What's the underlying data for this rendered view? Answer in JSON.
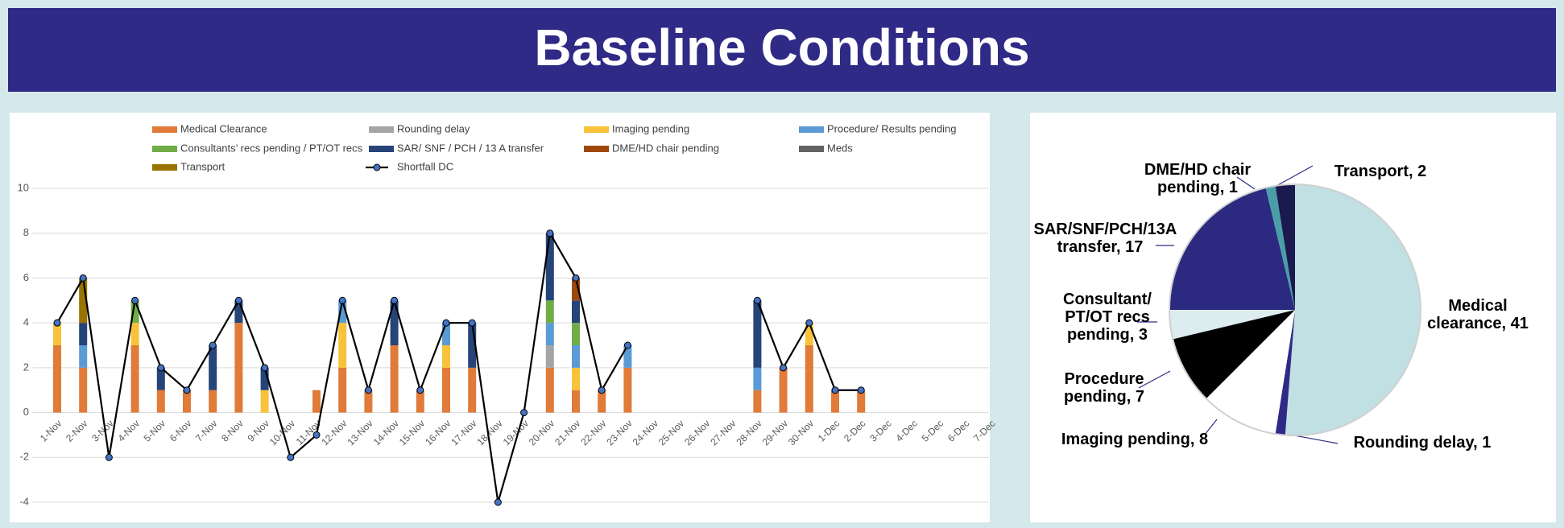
{
  "title": "Baseline Conditions",
  "chart_data": [
    {
      "type": "bar",
      "stacked": true,
      "grid": true,
      "categories": [
        "1-Nov",
        "2-Nov",
        "3-Nov",
        "4-Nov",
        "5-Nov",
        "6-Nov",
        "7-Nov",
        "8-Nov",
        "9-Nov",
        "10-Nov",
        "11-Nov",
        "12-Nov",
        "13-Nov",
        "14-Nov",
        "15-Nov",
        "16-Nov",
        "17-Nov",
        "18-Nov",
        "19-Nov",
        "20-Nov",
        "21-Nov",
        "22-Nov",
        "23-Nov",
        "24-Nov",
        "25-Nov",
        "26-Nov",
        "27-Nov",
        "28-Nov",
        "29-Nov",
        "30-Nov",
        "1-Dec",
        "2-Dec",
        "3-Dec",
        "4-Dec",
        "5-Dec",
        "6-Dec",
        "7-Dec"
      ],
      "ylim": [
        -4,
        10
      ],
      "yticks": [
        -4,
        -2,
        0,
        2,
        4,
        6,
        8,
        10
      ],
      "series": [
        {
          "name": "Medical Clearance",
          "color": "#e07b39",
          "values": [
            3,
            2,
            null,
            3,
            1,
            1,
            1,
            4,
            null,
            null,
            1,
            2,
            1,
            3,
            1,
            2,
            2,
            null,
            null,
            2,
            1,
            1,
            2,
            null,
            null,
            null,
            null,
            1,
            2,
            3,
            1,
            1,
            null,
            null,
            null,
            null,
            null
          ]
        },
        {
          "name": "Rounding delay",
          "color": "#a5a5a5",
          "values": [
            null,
            null,
            null,
            null,
            null,
            null,
            null,
            null,
            null,
            null,
            null,
            null,
            null,
            null,
            null,
            null,
            null,
            null,
            null,
            1,
            null,
            null,
            null,
            null,
            null,
            null,
            null,
            null,
            null,
            null,
            null,
            null,
            null,
            null,
            null,
            null,
            null
          ]
        },
        {
          "name": "Imaging pending",
          "color": "#f8c33a",
          "values": [
            1,
            null,
            null,
            1,
            null,
            null,
            null,
            null,
            1,
            null,
            null,
            2,
            null,
            null,
            null,
            1,
            null,
            null,
            null,
            null,
            1,
            null,
            null,
            null,
            null,
            null,
            null,
            null,
            null,
            1,
            null,
            null,
            null,
            null,
            null,
            null,
            null
          ]
        },
        {
          "name": "Procedure/ Results pending",
          "color": "#5b9bd5",
          "values": [
            null,
            1,
            null,
            null,
            null,
            null,
            null,
            null,
            null,
            null,
            null,
            1,
            null,
            null,
            null,
            1,
            null,
            null,
            null,
            1,
            1,
            null,
            1,
            null,
            null,
            null,
            null,
            1,
            null,
            null,
            null,
            null,
            null,
            null,
            null,
            null,
            null
          ]
        },
        {
          "name": "Consultants’ recs pending / PT/OT recs",
          "color": "#70ad47",
          "values": [
            null,
            null,
            null,
            1,
            null,
            null,
            null,
            null,
            null,
            null,
            null,
            null,
            null,
            null,
            null,
            null,
            null,
            null,
            null,
            1,
            1,
            null,
            null,
            null,
            null,
            null,
            null,
            null,
            null,
            null,
            null,
            null,
            null,
            null,
            null,
            null,
            null
          ]
        },
        {
          "name": "SAR/ SNF / PCH / 13 A transfer",
          "color": "#264478",
          "values": [
            null,
            1,
            null,
            null,
            1,
            null,
            2,
            1,
            1,
            null,
            null,
            null,
            null,
            2,
            null,
            null,
            2,
            null,
            null,
            3,
            1,
            null,
            null,
            null,
            null,
            null,
            null,
            3,
            null,
            null,
            null,
            null,
            null,
            null,
            null,
            null,
            null
          ]
        },
        {
          "name": "DME/HD chair pending",
          "color": "#9e480e",
          "values": [
            null,
            null,
            null,
            null,
            null,
            null,
            null,
            null,
            null,
            null,
            null,
            null,
            null,
            null,
            null,
            null,
            null,
            null,
            null,
            null,
            1,
            null,
            null,
            null,
            null,
            null,
            null,
            null,
            null,
            null,
            null,
            null,
            null,
            null,
            null,
            null,
            null
          ]
        },
        {
          "name": "Meds",
          "color": "#636363",
          "values": [
            null,
            null,
            null,
            null,
            null,
            null,
            null,
            null,
            null,
            null,
            null,
            null,
            null,
            null,
            null,
            null,
            null,
            null,
            null,
            null,
            null,
            null,
            null,
            null,
            null,
            null,
            null,
            null,
            null,
            null,
            null,
            null,
            null,
            null,
            null,
            null,
            null
          ]
        },
        {
          "name": "Transport",
          "color": "#997300",
          "values": [
            null,
            2,
            null,
            null,
            null,
            null,
            null,
            null,
            null,
            null,
            null,
            null,
            null,
            null,
            null,
            null,
            null,
            null,
            null,
            null,
            null,
            null,
            null,
            null,
            null,
            null,
            null,
            null,
            null,
            null,
            null,
            null,
            null,
            null,
            null,
            null,
            null
          ]
        },
        {
          "name": "Shortfall DC",
          "type": "line",
          "color": "#000000",
          "marker_color": "#4472c4",
          "values": [
            4,
            6,
            -2,
            5,
            2,
            1,
            3,
            5,
            2,
            -2,
            -1,
            5,
            1,
            5,
            1,
            4,
            4,
            -4,
            0,
            8,
            6,
            1,
            3,
            null,
            null,
            null,
            null,
            5,
            2,
            4,
            1,
            1,
            null,
            null,
            null,
            null,
            null
          ]
        }
      ]
    },
    {
      "type": "pie",
      "values": [
        41,
        1,
        8,
        7,
        3,
        17,
        1,
        2
      ],
      "value_labels": [
        "Medical clearance, 41",
        "Rounding delay, 1",
        "Imaging pending, 8",
        "Procedure pending, 7",
        "Consultant/ PT/OT recs pending, 3",
        "SAR/SNF/PCH/13A transfer, 17",
        "DME/HD chair pending, 1",
        "Transport, 2"
      ],
      "colors": [
        "#c0e0e3",
        "#2e2a85",
        "#ffffff",
        "#000000",
        "#dcecef",
        "#2b2a80",
        "#4a9ea8",
        "#1a1a4e"
      ]
    }
  ]
}
